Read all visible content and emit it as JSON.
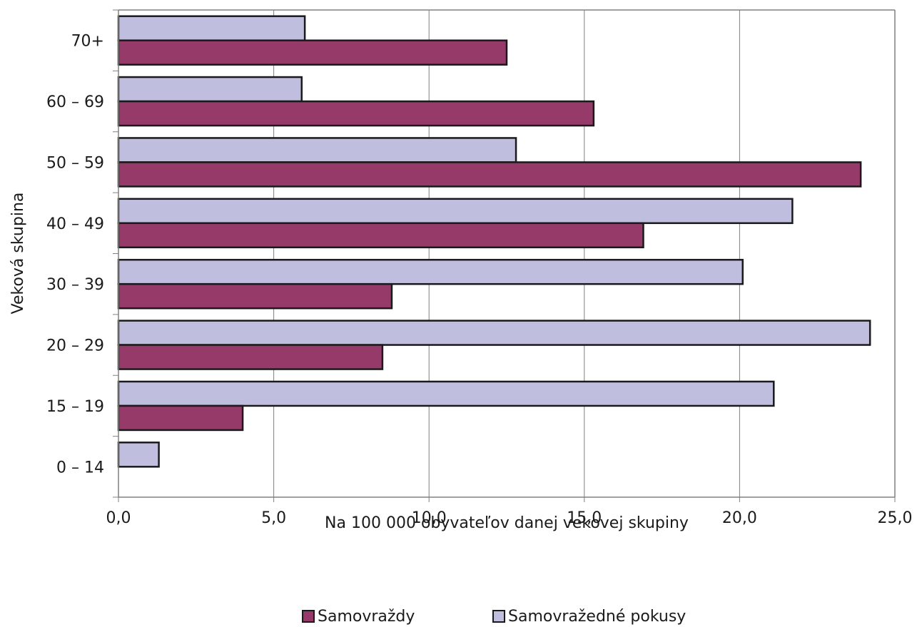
{
  "chart_data": {
    "type": "bar",
    "orientation": "horizontal",
    "categories": [
      "0 – 14",
      "15 – 19",
      "20 – 29",
      "30 – 39",
      "40 – 49",
      "50 – 59",
      "60 – 69",
      "70+"
    ],
    "series": [
      {
        "name": "Samovraždy",
        "color": "#963a6a",
        "values": [
          0.0,
          4.0,
          8.5,
          8.8,
          16.9,
          23.9,
          15.3,
          12.5
        ]
      },
      {
        "name": "Samovražedné pokusy",
        "color": "#c0bedf",
        "values": [
          1.3,
          21.1,
          24.2,
          20.1,
          21.7,
          12.8,
          5.9,
          6.0
        ]
      }
    ],
    "xlabel": "Na 100 000 obyvateľov danej vekovej skupiny",
    "ylabel": "Veková skupina",
    "xlim": [
      0,
      25
    ],
    "xticks": [
      0,
      5,
      10,
      15,
      20,
      25
    ],
    "xtick_labels": [
      "0,0",
      "5,0",
      "10,0",
      "15,0",
      "20,0",
      "25,0"
    ],
    "grid": "vertical",
    "legend_position": "bottom"
  }
}
